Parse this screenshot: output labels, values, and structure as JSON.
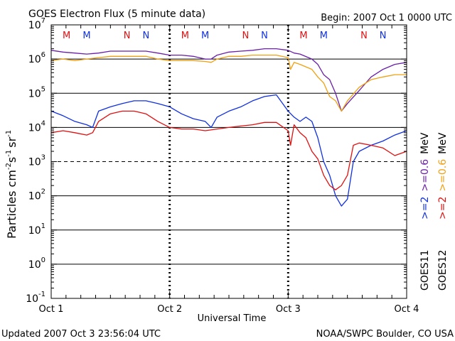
{
  "title": "GOES Electron Flux (5 minute data)",
  "begin": "Begin: 2007 Oct 1 0000 UTC",
  "updated": "Updated 2007 Oct  3 23:56:04 UTC",
  "credit": "NOAA/SWPC Boulder, CO USA",
  "colors": {
    "purple": "#6a1fa8",
    "orange": "#f0a010",
    "blue": "#1030e0",
    "red": "#e01010",
    "m_label": "#e01010",
    "n_label": "#1030e0"
  },
  "chart_data": {
    "type": "line",
    "title": "GOES Electron Flux (5 minute data)",
    "xlabel": "Universal Time",
    "ylabel_main": "Particles cm",
    "ylabel_sup1": "-2",
    "ylabel_mid": "s",
    "ylabel_sup2": "-1",
    "ylabel_end": "sr",
    "ylabel_sup3": "-1",
    "yscale": "log",
    "ylim": [
      0.1,
      10000000
    ],
    "xlim": [
      0,
      3
    ],
    "x_ticks": [
      {
        "value": 0,
        "label": "Oct 1"
      },
      {
        "value": 1,
        "label": "Oct 2"
      },
      {
        "value": 2,
        "label": "Oct 3"
      },
      {
        "value": 3,
        "label": "Oct 4"
      }
    ],
    "y_ticks": [
      {
        "exp": -1,
        "base": "10",
        "sup": "-1"
      },
      {
        "exp": 0,
        "base": "10",
        "sup": "0"
      },
      {
        "exp": 1,
        "base": "10",
        "sup": "1"
      },
      {
        "exp": 2,
        "base": "10",
        "sup": "2"
      },
      {
        "exp": 3,
        "base": "10",
        "sup": "3"
      },
      {
        "exp": 4,
        "base": "10",
        "sup": "4"
      },
      {
        "exp": 5,
        "base": "10",
        "sup": "5"
      },
      {
        "exp": 6,
        "base": "10",
        "sup": "6"
      },
      {
        "exp": 7,
        "base": "10",
        "sup": "7"
      }
    ],
    "thresholds": [
      {
        "value": 10000000,
        "style": "solid"
      },
      {
        "value": 1000000,
        "style": "solid"
      },
      {
        "value": 100000,
        "style": "solid"
      },
      {
        "value": 10000,
        "style": "solid"
      },
      {
        "value": 1000,
        "style": "dashed"
      },
      {
        "value": 100,
        "style": "solid"
      },
      {
        "value": 10,
        "style": "solid"
      },
      {
        "value": 1,
        "style": "solid"
      }
    ],
    "mn_markers": [
      {
        "x": 0.13,
        "label": "M",
        "color": "red"
      },
      {
        "x": 0.3,
        "label": "M",
        "color": "blue"
      },
      {
        "x": 0.64,
        "label": "N",
        "color": "red"
      },
      {
        "x": 0.8,
        "label": "N",
        "color": "blue"
      },
      {
        "x": 1.13,
        "label": "M",
        "color": "red"
      },
      {
        "x": 1.3,
        "label": "M",
        "color": "blue"
      },
      {
        "x": 1.64,
        "label": "N",
        "color": "red"
      },
      {
        "x": 1.8,
        "label": "N",
        "color": "blue"
      },
      {
        "x": 2.13,
        "label": "M",
        "color": "red"
      },
      {
        "x": 2.3,
        "label": "M",
        "color": "blue"
      },
      {
        "x": 2.64,
        "label": "N",
        "color": "red"
      },
      {
        "x": 2.8,
        "label": "N",
        "color": "blue"
      }
    ],
    "legend": {
      "goes11": "GOES11",
      "goes12": "GOES12",
      "col1": [
        {
          "text": ">=2",
          "color": "blue"
        },
        {
          "text": ">=0.6",
          "color": "purple"
        },
        {
          "text": "MeV",
          "color": "black"
        }
      ],
      "col2": [
        {
          "text": ">=2",
          "color": "red"
        },
        {
          "text": ">=0.6",
          "color": "orange"
        },
        {
          "text": "MeV",
          "color": "black"
        }
      ]
    },
    "series": [
      {
        "color": "purple",
        "x": [
          0,
          0.1,
          0.2,
          0.3,
          0.4,
          0.5,
          0.6,
          0.7,
          0.8,
          0.9,
          1.0,
          1.1,
          1.2,
          1.3,
          1.35,
          1.4,
          1.5,
          1.6,
          1.7,
          1.8,
          1.9,
          2.0,
          2.05,
          2.1,
          2.2,
          2.25,
          2.3,
          2.35,
          2.4,
          2.45,
          2.5,
          2.6,
          2.7,
          2.8,
          2.9,
          3.0
        ],
        "y": [
          1800000,
          1600000,
          1500000,
          1400000,
          1500000,
          1700000,
          1700000,
          1700000,
          1700000,
          1500000,
          1300000,
          1300000,
          1200000,
          1000000,
          1000000,
          1300000,
          1600000,
          1700000,
          1800000,
          2000000,
          2000000,
          1800000,
          1500000,
          1400000,
          1000000,
          700000,
          350000,
          250000,
          100000,
          30000,
          50000,
          120000,
          300000,
          500000,
          700000,
          800000
        ]
      },
      {
        "color": "orange",
        "x": [
          0,
          0.1,
          0.2,
          0.3,
          0.4,
          0.5,
          0.6,
          0.7,
          0.8,
          0.9,
          1.0,
          1.1,
          1.2,
          1.3,
          1.35,
          1.4,
          1.5,
          1.6,
          1.7,
          1.8,
          1.9,
          2.0,
          2.02,
          2.05,
          2.1,
          2.2,
          2.25,
          2.3,
          2.35,
          2.4,
          2.45,
          2.5,
          2.6,
          2.7,
          2.8,
          2.9,
          3.0
        ],
        "y": [
          900000,
          1000000,
          900000,
          1000000,
          1100000,
          1200000,
          1200000,
          1200000,
          1200000,
          1000000,
          900000,
          900000,
          900000,
          850000,
          800000,
          1000000,
          1200000,
          1200000,
          1300000,
          1300000,
          1300000,
          1100000,
          500000,
          800000,
          700000,
          500000,
          300000,
          200000,
          80000,
          60000,
          30000,
          60000,
          150000,
          250000,
          300000,
          350000,
          350000
        ]
      },
      {
        "color": "blue",
        "x": [
          0,
          0.1,
          0.2,
          0.3,
          0.35,
          0.4,
          0.5,
          0.6,
          0.7,
          0.8,
          0.9,
          1.0,
          1.1,
          1.2,
          1.3,
          1.35,
          1.4,
          1.5,
          1.6,
          1.7,
          1.8,
          1.9,
          2.0,
          2.05,
          2.1,
          2.15,
          2.2,
          2.25,
          2.3,
          2.35,
          2.4,
          2.45,
          2.5,
          2.55,
          2.6,
          2.7,
          2.8,
          2.9,
          3.0
        ],
        "y": [
          30000,
          22000,
          15000,
          12000,
          10000,
          30000,
          40000,
          50000,
          60000,
          60000,
          50000,
          40000,
          25000,
          18000,
          15000,
          10000,
          20000,
          30000,
          40000,
          60000,
          80000,
          90000,
          30000,
          20000,
          15000,
          20000,
          15000,
          5000,
          1000,
          400,
          100,
          50,
          80,
          1000,
          2000,
          3000,
          4000,
          6000,
          8000
        ]
      },
      {
        "color": "red",
        "x": [
          0,
          0.1,
          0.2,
          0.3,
          0.35,
          0.4,
          0.5,
          0.6,
          0.7,
          0.8,
          0.9,
          1.0,
          1.1,
          1.2,
          1.3,
          1.4,
          1.5,
          1.6,
          1.7,
          1.8,
          1.9,
          2.0,
          2.02,
          2.05,
          2.1,
          2.15,
          2.2,
          2.25,
          2.3,
          2.35,
          2.4,
          2.45,
          2.5,
          2.55,
          2.6,
          2.7,
          2.8,
          2.9,
          3.0
        ],
        "y": [
          7000,
          8000,
          7000,
          6000,
          7000,
          15000,
          25000,
          30000,
          30000,
          25000,
          15000,
          10000,
          9000,
          9000,
          8000,
          9000,
          10000,
          11000,
          12000,
          14000,
          14000,
          8000,
          3000,
          12000,
          7000,
          5000,
          2000,
          1200,
          400,
          200,
          150,
          200,
          400,
          3000,
          3500,
          3000,
          2500,
          1500,
          2000
        ]
      }
    ]
  }
}
